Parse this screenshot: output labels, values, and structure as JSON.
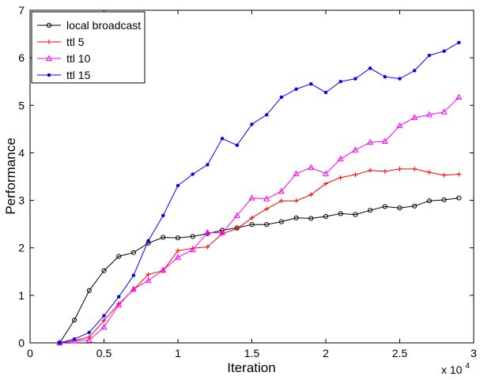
{
  "chart_data": {
    "type": "line",
    "xlabel": "Iteration",
    "ylabel": "Performance",
    "x_multiplier_label": "x 10",
    "x_multiplier_exponent": "4",
    "xlim": [
      0,
      30000
    ],
    "ylim": [
      0,
      7
    ],
    "xticks": [
      0,
      5000,
      10000,
      15000,
      20000,
      25000,
      30000
    ],
    "xtick_labels": [
      "0",
      "0.5",
      "1",
      "1.5",
      "2",
      "2.5",
      "3"
    ],
    "yticks": [
      0,
      1,
      2,
      3,
      4,
      5,
      6,
      7
    ],
    "ytick_labels": [
      "0",
      "1",
      "2",
      "3",
      "4",
      "5",
      "6",
      "7"
    ],
    "grid": false,
    "legend_position": "top-left",
    "x": [
      2000,
      3000,
      4000,
      5000,
      6000,
      7000,
      8000,
      9000,
      10000,
      11000,
      12000,
      13000,
      14000,
      15000,
      16000,
      17000,
      18000,
      19000,
      20000,
      21000,
      22000,
      23000,
      24000,
      25000,
      26000,
      27000,
      28000,
      29000
    ],
    "series": [
      {
        "name": "local broadcast",
        "color": "#000000",
        "marker": "circle",
        "values": [
          0.0,
          0.48,
          1.1,
          1.52,
          1.82,
          1.9,
          2.1,
          2.22,
          2.21,
          2.24,
          2.3,
          2.37,
          2.42,
          2.49,
          2.49,
          2.55,
          2.63,
          2.62,
          2.66,
          2.72,
          2.7,
          2.79,
          2.87,
          2.84,
          2.88,
          2.99,
          3.01,
          3.05
        ]
      },
      {
        "name": "ttl 5",
        "color": "#ff0000",
        "marker": "plus",
        "values": [
          0.0,
          0.05,
          0.12,
          0.47,
          0.82,
          1.12,
          1.44,
          1.52,
          1.94,
          1.99,
          2.02,
          2.3,
          2.4,
          2.63,
          2.82,
          2.99,
          2.99,
          3.12,
          3.35,
          3.48,
          3.54,
          3.63,
          3.61,
          3.66,
          3.66,
          3.59,
          3.53,
          3.55
        ]
      },
      {
        "name": "ttl 10",
        "color": "#ff00ff",
        "marker": "triangle",
        "values": [
          0.0,
          0.04,
          0.06,
          0.33,
          0.8,
          1.13,
          1.31,
          1.53,
          1.8,
          1.96,
          2.32,
          2.32,
          2.68,
          3.05,
          3.03,
          3.19,
          3.56,
          3.69,
          3.56,
          3.87,
          4.06,
          4.22,
          4.24,
          4.57,
          4.74,
          4.8,
          4.86,
          5.17
        ]
      },
      {
        "name": "ttl 15",
        "color": "#0000ff",
        "marker": "dot",
        "values": [
          0.0,
          0.08,
          0.22,
          0.57,
          0.97,
          1.42,
          2.15,
          2.68,
          3.31,
          3.55,
          3.75,
          4.3,
          4.16,
          4.6,
          4.8,
          5.17,
          5.34,
          5.45,
          5.27,
          5.5,
          5.56,
          5.78,
          5.6,
          5.56,
          5.73,
          6.05,
          6.14,
          6.32
        ]
      }
    ]
  }
}
